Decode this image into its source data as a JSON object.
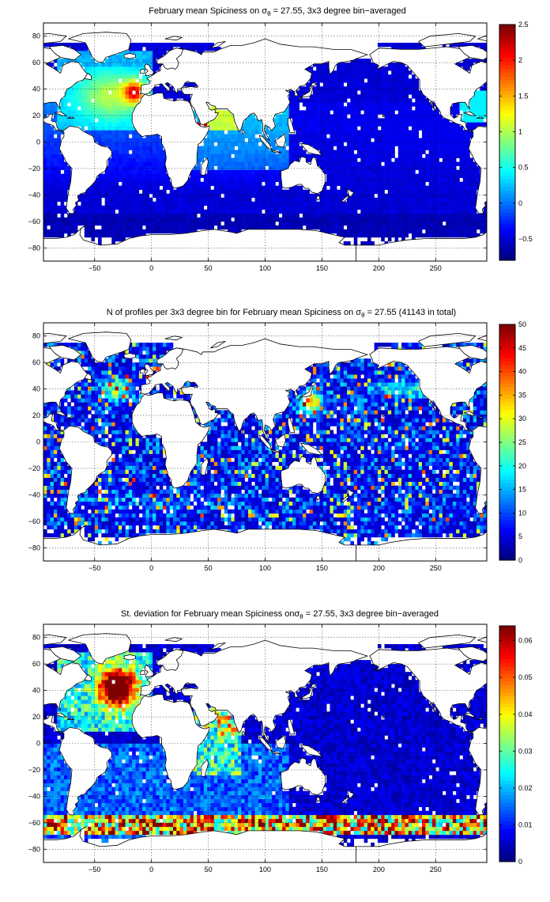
{
  "colors": {
    "colormap": "jet",
    "land": "#ffffff",
    "coast": "#000000",
    "gap": "#ffffff"
  },
  "chart_data": [
    {
      "type": "heatmap",
      "title": "February mean Spiciness on σ_θ = 27.55, 3x3 degree bin−averaged",
      "title_parts": [
        "February mean Spiciness on ",
        "σ",
        "θ",
        " = 27.55, 3x3 degree bin−averaged"
      ],
      "xlim": [
        -95,
        295
      ],
      "ylim": [
        -90,
        90
      ],
      "x_ticks": [
        -50,
        0,
        50,
        100,
        150,
        200,
        250
      ],
      "x_tick_labels": [
        "−50",
        "0",
        "50",
        "100",
        "150",
        "200",
        "250"
      ],
      "y_ticks": [
        -80,
        -60,
        -40,
        -20,
        0,
        20,
        40,
        60,
        80
      ],
      "y_tick_labels": [
        "−80",
        "−60",
        "−40",
        "−20",
        "0",
        "20",
        "40",
        "60",
        "80"
      ],
      "grid": true,
      "colorbar": {
        "range": [
          -0.8,
          2.5
        ],
        "ticks": [
          -0.5,
          0,
          0.5,
          1,
          1.5,
          2,
          2.5
        ],
        "tick_labels": [
          "−0.5",
          "0",
          "0.5",
          "1",
          "1.5",
          "2",
          "2.5"
        ]
      },
      "field": "spice"
    },
    {
      "type": "heatmap",
      "title": "N of profiles per 3x3 degree bin for February mean Spiciness on σ_θ = 27.55 (41143 in total)",
      "title_parts": [
        "N of profiles per 3x3 degree bin for February mean Spiciness on ",
        "σ",
        "θ",
        " = 27.55 (41143 in total)"
      ],
      "xlim": [
        -95,
        295
      ],
      "ylim": [
        -90,
        90
      ],
      "x_ticks": [
        -50,
        0,
        50,
        100,
        150,
        200,
        250
      ],
      "x_tick_labels": [
        "−50",
        "0",
        "50",
        "100",
        "150",
        "200",
        "250"
      ],
      "y_ticks": [
        -80,
        -60,
        -40,
        -20,
        0,
        20,
        40,
        60,
        80
      ],
      "y_tick_labels": [
        "−80",
        "−60",
        "−40",
        "−20",
        "0",
        "20",
        "40",
        "60",
        "80"
      ],
      "grid": true,
      "colorbar": {
        "range": [
          0,
          50
        ],
        "ticks": [
          0,
          5,
          10,
          15,
          20,
          25,
          30,
          35,
          40,
          45,
          50
        ],
        "tick_labels": [
          "0",
          "5",
          "10",
          "15",
          "20",
          "25",
          "30",
          "35",
          "40",
          "45",
          "50"
        ]
      },
      "field": "count"
    },
    {
      "type": "heatmap",
      "title": "St. deviation for February mean Spiciness on σ_θ = 27.55, 3x3 degree bin−averaged",
      "title_parts": [
        "St. deviation for February mean Spiciness on",
        "σ",
        "θ",
        " = 27.55, 3x3 degree bin−averaged"
      ],
      "xlim": [
        -95,
        295
      ],
      "ylim": [
        -90,
        90
      ],
      "x_ticks": [
        -50,
        0,
        50,
        100,
        150,
        200,
        250
      ],
      "x_tick_labels": [
        "−50",
        "0",
        "50",
        "100",
        "150",
        "200",
        "250"
      ],
      "y_ticks": [
        -80,
        -60,
        -40,
        -20,
        0,
        20,
        40,
        60,
        80
      ],
      "y_tick_labels": [
        "−80",
        "−60",
        "−40",
        "−20",
        "0",
        "20",
        "40",
        "60",
        "80"
      ],
      "grid": true,
      "colorbar": {
        "range": [
          0,
          0.064
        ],
        "ticks": [
          0,
          0.01,
          0.02,
          0.03,
          0.04,
          0.05,
          0.06
        ],
        "tick_labels": [
          "0",
          "0.01",
          "0.02",
          "0.03",
          "0.04",
          "0.05",
          "0.06"
        ]
      },
      "field": "std"
    }
  ]
}
